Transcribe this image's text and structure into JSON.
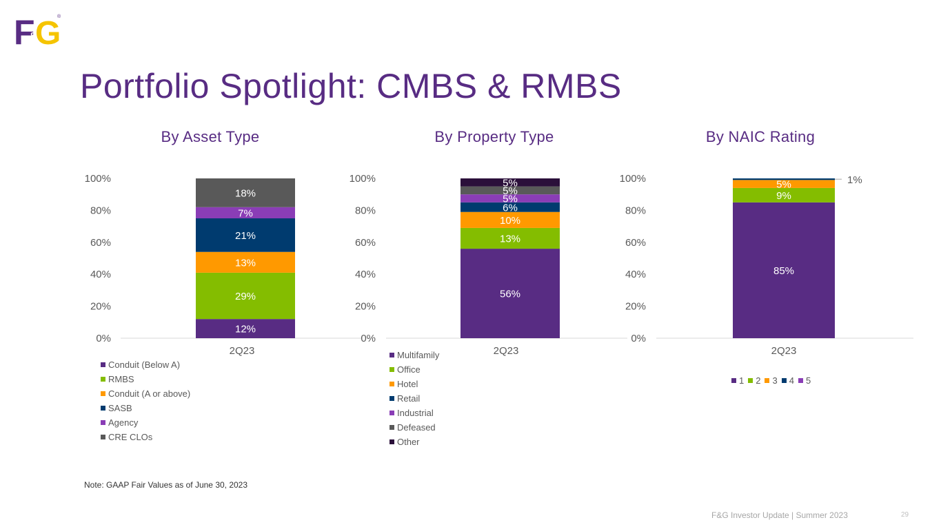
{
  "logo": {
    "text_left": "F",
    "text_mid": "&",
    "text_right": "G",
    "reg": "®"
  },
  "page": {
    "title": "Portfolio Spotlight: CMBS & RMBS",
    "note": "Note: GAAP Fair Values as of June 30, 2023",
    "footer": "F&G Investor Update | Summer 2023",
    "page_number": "29"
  },
  "colors": {
    "purple": "#582c83",
    "green": "#84bd00",
    "orange": "#ff9900",
    "navy": "#003b6f",
    "violet": "#8a3db6",
    "gray": "#595959",
    "dark": "#2b0f3a"
  },
  "chart_data": [
    {
      "type": "bar",
      "stacked": true,
      "title": "By Asset Type",
      "categories": [
        "2Q23"
      ],
      "ylim": [
        0,
        100
      ],
      "yticks": [
        "0%",
        "20%",
        "40%",
        "60%",
        "80%",
        "100%"
      ],
      "legend_position": "bottom",
      "series": [
        {
          "name": "Conduit (Below A)",
          "values": [
            12
          ],
          "label": "12%",
          "color": "#582c83"
        },
        {
          "name": "RMBS",
          "values": [
            29
          ],
          "label": "29%",
          "color": "#84bd00"
        },
        {
          "name": "Conduit (A or above)",
          "values": [
            13
          ],
          "label": "13%",
          "color": "#ff9900"
        },
        {
          "name": "SASB",
          "values": [
            21
          ],
          "label": "21%",
          "color": "#003b6f"
        },
        {
          "name": "Agency",
          "values": [
            7
          ],
          "label": "7%",
          "color": "#8a3db6"
        },
        {
          "name": "CRE CLOs",
          "values": [
            18
          ],
          "label": "18%",
          "color": "#595959"
        }
      ]
    },
    {
      "type": "bar",
      "stacked": true,
      "title": "By Property Type",
      "categories": [
        "2Q23"
      ],
      "ylim": [
        0,
        100
      ],
      "yticks": [
        "0%",
        "20%",
        "40%",
        "60%",
        "80%",
        "100%"
      ],
      "legend_position": "bottom",
      "series": [
        {
          "name": "Multifamily",
          "values": [
            56
          ],
          "label": "56%",
          "color": "#582c83"
        },
        {
          "name": "Office",
          "values": [
            13
          ],
          "label": "13%",
          "color": "#84bd00"
        },
        {
          "name": "Hotel",
          "values": [
            10
          ],
          "label": "10%",
          "color": "#ff9900"
        },
        {
          "name": "Retail",
          "values": [
            6
          ],
          "label": "6%",
          "color": "#003b6f"
        },
        {
          "name": "Industrial",
          "values": [
            5
          ],
          "label": "5%",
          "color": "#8a3db6"
        },
        {
          "name": "Defeased",
          "values": [
            5
          ],
          "label": "5%",
          "color": "#595959"
        },
        {
          "name": "Other",
          "values": [
            5
          ],
          "label": "5%",
          "color": "#2b0f3a"
        }
      ]
    },
    {
      "type": "bar",
      "stacked": true,
      "title": "By NAIC Rating",
      "categories": [
        "2Q23"
      ],
      "ylim": [
        0,
        100
      ],
      "yticks": [
        "0%",
        "20%",
        "40%",
        "60%",
        "80%",
        "100%"
      ],
      "legend_position": "bottom",
      "series": [
        {
          "name": "1",
          "values": [
            85
          ],
          "label": "85%",
          "color": "#582c83"
        },
        {
          "name": "2",
          "values": [
            9
          ],
          "label": "9%",
          "color": "#84bd00"
        },
        {
          "name": "3",
          "values": [
            5
          ],
          "label": "5%",
          "color": "#ff9900"
        },
        {
          "name": "4",
          "values": [
            1
          ],
          "label": "1%",
          "color": "#003b6f",
          "label_outside": true
        },
        {
          "name": "5",
          "values": [
            0
          ],
          "label": "",
          "color": "#8a3db6"
        }
      ]
    }
  ]
}
